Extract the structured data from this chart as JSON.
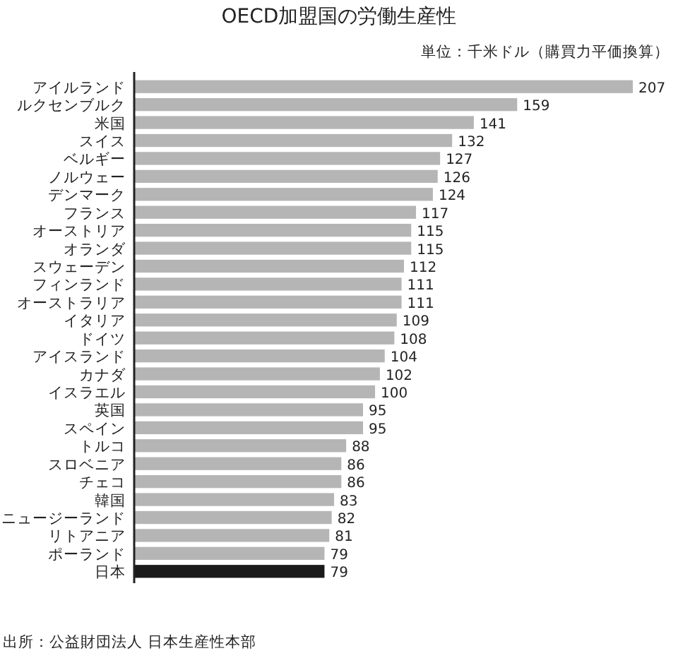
{
  "chart_data": {
    "type": "bar",
    "orientation": "horizontal",
    "title": "OECD加盟国の労働生産性",
    "subtitle": "単位：千米ドル（購買力平価換算）",
    "annotations": [
      "出所：公益財団法人 日本生産性本部"
    ],
    "data_labels": true,
    "categories": [
      "アイルランド",
      "ルクセンブルク",
      "米国",
      "スイス",
      "ベルギー",
      "ノルウェー",
      "デンマーク",
      "フランス",
      "オーストリア",
      "オランダ",
      "スウェーデン",
      "フィンランド",
      "オーストラリア",
      "イタリア",
      "ドイツ",
      "アイスランド",
      "カナダ",
      "イスラエル",
      "英国",
      "スペイン",
      "トルコ",
      "スロベニア",
      "チェコ",
      "韓国",
      "ニュージーランド",
      "リトアニア",
      "ポーランド",
      "日本"
    ],
    "values": [
      207,
      159,
      141,
      132,
      127,
      126,
      124,
      117,
      115,
      115,
      112,
      111,
      111,
      109,
      108,
      104,
      102,
      100,
      95,
      95,
      88,
      86,
      86,
      83,
      82,
      81,
      79,
      79
    ],
    "colors": [
      "#b5b5b5",
      "#b5b5b5",
      "#b5b5b5",
      "#b5b5b5",
      "#b5b5b5",
      "#b5b5b5",
      "#b5b5b5",
      "#b5b5b5",
      "#b5b5b5",
      "#b5b5b5",
      "#b5b5b5",
      "#b5b5b5",
      "#b5b5b5",
      "#b5b5b5",
      "#b5b5b5",
      "#b5b5b5",
      "#b5b5b5",
      "#b5b5b5",
      "#b5b5b5",
      "#b5b5b5",
      "#b5b5b5",
      "#b5b5b5",
      "#b5b5b5",
      "#b5b5b5",
      "#b5b5b5",
      "#b5b5b5",
      "#b5b5b5",
      "#1a1a1a"
    ]
  }
}
